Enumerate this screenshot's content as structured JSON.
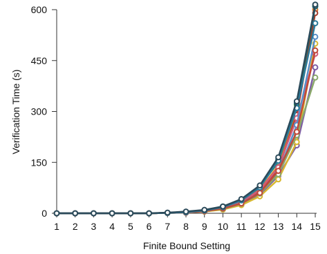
{
  "chart_data": {
    "type": "line",
    "title": "",
    "xlabel": "Finite Bound Setting",
    "ylabel": "Verification Time (s)",
    "categories": [
      "1",
      "2",
      "3",
      "4",
      "5",
      "6",
      "7",
      "8",
      "9",
      "10",
      "11",
      "12",
      "13",
      "14",
      "15"
    ],
    "x": [
      1,
      2,
      3,
      4,
      5,
      6,
      7,
      8,
      9,
      10,
      11,
      12,
      13,
      14,
      15
    ],
    "ylim": [
      0,
      600
    ],
    "yticks": [
      0,
      150,
      300,
      450,
      600
    ],
    "grid": false,
    "legend": "none",
    "series": [
      {
        "color": "#e07b2a",
        "values": [
          0,
          0,
          0,
          0,
          0,
          0,
          1,
          3,
          8,
          18,
          35,
          70,
          140,
          300,
          600
        ]
      },
      {
        "color": "#a33a2a",
        "values": [
          0,
          0,
          0,
          0,
          0,
          0,
          1,
          2,
          7,
          15,
          32,
          65,
          130,
          290,
          590
        ]
      },
      {
        "color": "#3a9a3a",
        "values": [
          0,
          0,
          0,
          0,
          0,
          0,
          1,
          3,
          9,
          20,
          40,
          80,
          150,
          320,
          610
        ]
      },
      {
        "color": "#7d5ea6",
        "values": [
          0,
          0,
          0,
          0,
          0,
          0,
          1,
          2,
          5,
          12,
          25,
          55,
          110,
          200,
          430
        ]
      },
      {
        "color": "#d8b830",
        "values": [
          0,
          0,
          0,
          0,
          0,
          0,
          1,
          2,
          5,
          11,
          24,
          50,
          100,
          210,
          500
        ]
      },
      {
        "color": "#1f5f6f",
        "values": [
          0,
          0,
          0,
          0,
          0,
          0,
          1,
          3,
          9,
          20,
          40,
          80,
          160,
          325,
          610
        ]
      },
      {
        "color": "#d05a7a",
        "values": [
          0,
          0,
          0,
          0,
          0,
          0,
          1,
          3,
          7,
          16,
          33,
          68,
          135,
          280,
          470
        ]
      },
      {
        "color": "#5a8fc8",
        "values": [
          0,
          0,
          0,
          0,
          0,
          0,
          1,
          2,
          6,
          14,
          30,
          60,
          120,
          260,
          520
        ]
      },
      {
        "color": "#8aa86a",
        "values": [
          0,
          0,
          0,
          0,
          0,
          0,
          1,
          2,
          6,
          13,
          28,
          58,
          115,
          230,
          400
        ]
      },
      {
        "color": "#c04a3a",
        "values": [
          0,
          0,
          0,
          0,
          0,
          0,
          1,
          2,
          6,
          14,
          29,
          60,
          125,
          240,
          480
        ]
      },
      {
        "color": "#2a7a9a",
        "values": [
          0,
          0,
          0,
          0,
          0,
          0,
          1,
          3,
          8,
          18,
          38,
          76,
          155,
          310,
          560
        ]
      },
      {
        "color": "#2b4a5a",
        "values": [
          0,
          0,
          0,
          0,
          0,
          0,
          2,
          5,
          10,
          20,
          42,
          82,
          165,
          330,
          615
        ]
      }
    ]
  }
}
